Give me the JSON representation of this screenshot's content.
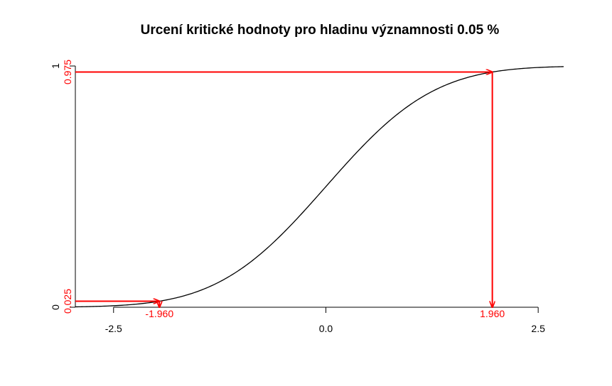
{
  "chart_data": {
    "type": "line",
    "title": "Urcení kritické hodnoty pro hladinu významnosti 0.05 %",
    "xlabel": "",
    "ylabel": "",
    "xlim": [
      -2.95,
      2.8
    ],
    "ylim": [
      0,
      1
    ],
    "x_ticks": [
      {
        "value": -2.5,
        "label": "-2.5"
      },
      {
        "value": 0.0,
        "label": "0.0"
      },
      {
        "value": 2.5,
        "label": "2.5"
      }
    ],
    "y_ticks": [
      {
        "value": 0,
        "label": "0"
      },
      {
        "value": 1,
        "label": "1"
      }
    ],
    "curve": {
      "name": "",
      "x_range": [
        -2.95,
        2.8
      ],
      "function": "standard normal CDF",
      "color": "#000000"
    },
    "critical_points": [
      {
        "x": -1.96,
        "p": 0.025,
        "x_label": "-1.960",
        "p_label": "0.025"
      },
      {
        "x": 1.96,
        "p": 0.975,
        "x_label": "1.960",
        "p_label": "0.975"
      }
    ],
    "accent_color": "#ff0000",
    "grid": false,
    "legend": "none"
  }
}
